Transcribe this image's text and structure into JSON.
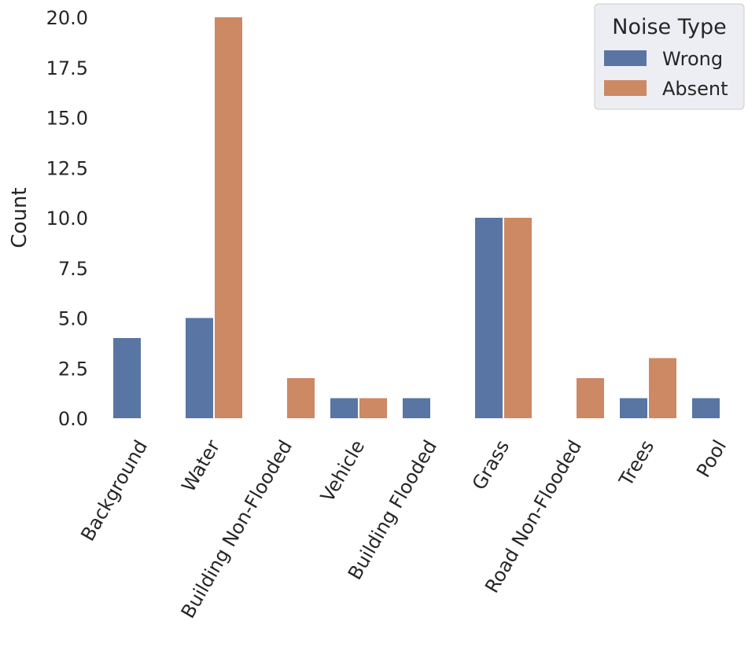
{
  "chart_data": {
    "type": "bar",
    "categories": [
      "Background",
      "Water",
      "Building Non-Flooded",
      "Vehicle",
      "Building Flooded",
      "Grass",
      "Road Non-Flooded",
      "Trees",
      "Pool"
    ],
    "series": [
      {
        "name": "Wrong",
        "color": "#5975a4",
        "values": [
          4,
          5,
          0,
          1,
          1,
          10,
          0,
          1,
          1
        ]
      },
      {
        "name": "Absent",
        "color": "#cc8963",
        "values": [
          0,
          20,
          2,
          1,
          0,
          10,
          2,
          3,
          0
        ]
      }
    ],
    "xlabel": "",
    "ylabel": "Count",
    "ylim": [
      0,
      20
    ],
    "yticks": [
      "0.0",
      "2.5",
      "5.0",
      "7.5",
      "10.0",
      "12.5",
      "15.0",
      "17.5",
      "20.0"
    ],
    "legend": {
      "title": "Noise Type",
      "placement": "top-right"
    },
    "grid": false
  }
}
